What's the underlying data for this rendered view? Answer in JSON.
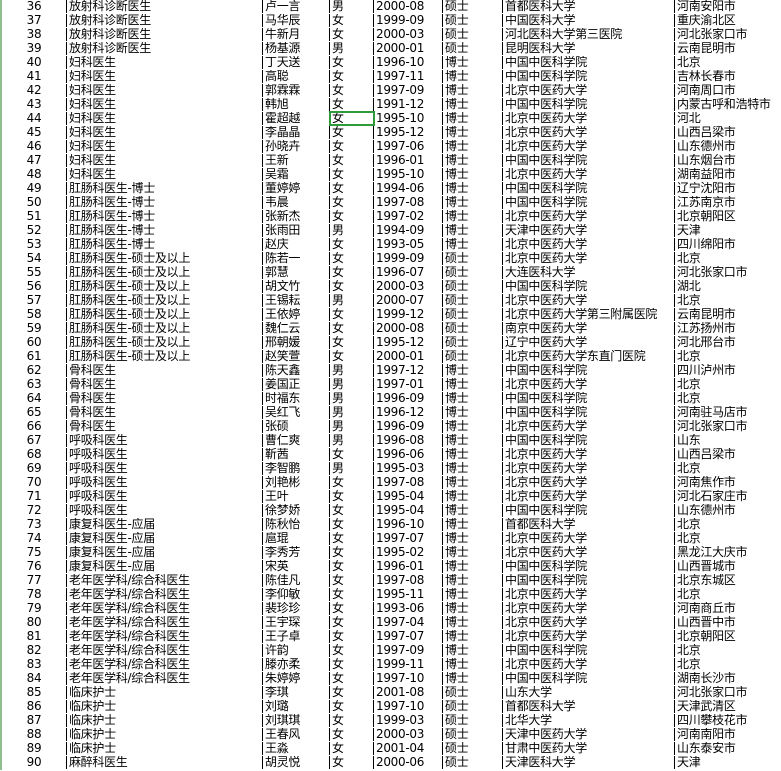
{
  "selection": {
    "row": 44,
    "column": "gender",
    "color": "#2e9a3a"
  },
  "rows": [
    [
      "36",
      "放射科诊断医生",
      "卢一言",
      "男",
      "2000-08",
      "硕士",
      "首都医科大学",
      "河南安阳市"
    ],
    [
      "37",
      "放射科诊断医生",
      "马华辰",
      "女",
      "1999-09",
      "硕士",
      "中国医科大学",
      "重庆渝北区"
    ],
    [
      "38",
      "放射科诊断医生",
      "牛新月",
      "女",
      "2000-03",
      "硕士",
      "河北医科大学第三医院",
      "河北张家口市"
    ],
    [
      "39",
      "放射科诊断医生",
      "杨基源",
      "男",
      "2000-01",
      "硕士",
      "昆明医科大学",
      "云南昆明市"
    ],
    [
      "40",
      "妇科医生",
      "丁天送",
      "女",
      "1996-10",
      "博士",
      "中国中医科学院",
      "北京"
    ],
    [
      "41",
      "妇科医生",
      "高聪",
      "女",
      "1997-11",
      "博士",
      "中国中医科学院",
      "吉林长春市"
    ],
    [
      "42",
      "妇科医生",
      "郭霖霖",
      "女",
      "1997-09",
      "博士",
      "北京中医药大学",
      "河南周口市"
    ],
    [
      "43",
      "妇科医生",
      "韩旭",
      "女",
      "1991-12",
      "博士",
      "中国中医科学院",
      "内蒙古呼和浩特市"
    ],
    [
      "44",
      "妇科医生",
      "霍超越",
      "女",
      "1995-10",
      "博士",
      "北京中医药大学",
      "河北"
    ],
    [
      "45",
      "妇科医生",
      "李晶晶",
      "女",
      "1995-12",
      "博士",
      "北京中医药大学",
      "山西吕梁市"
    ],
    [
      "46",
      "妇科医生",
      "孙晓卉",
      "女",
      "1997-06",
      "博士",
      "北京中医药大学",
      "山东德州市"
    ],
    [
      "47",
      "妇科医生",
      "王新",
      "女",
      "1996-01",
      "博士",
      "中国中医科学院",
      "山东烟台市"
    ],
    [
      "48",
      "妇科医生",
      "吴霜",
      "女",
      "1995-10",
      "博士",
      "北京中医药大学",
      "湖南益阳市"
    ],
    [
      "49",
      "肛肠科医生-博士",
      "董婷婷",
      "女",
      "1994-06",
      "博士",
      "中国中医科学院",
      "辽宁沈阳市"
    ],
    [
      "50",
      "肛肠科医生-博士",
      "韦晨",
      "女",
      "1997-08",
      "博士",
      "中国中医科学院",
      "江苏南京市"
    ],
    [
      "51",
      "肛肠科医生-博士",
      "张新杰",
      "女",
      "1997-02",
      "博士",
      "北京中医药大学",
      "北京朝阳区"
    ],
    [
      "52",
      "肛肠科医生-博士",
      "张雨田",
      "男",
      "1994-09",
      "博士",
      "天津中医药大学",
      "天津"
    ],
    [
      "53",
      "肛肠科医生-博士",
      "赵庆",
      "女",
      "1993-05",
      "博士",
      "北京中医药大学",
      "四川绵阳市"
    ],
    [
      "54",
      "肛肠科医生-硕士及以上",
      "陈若一",
      "女",
      "1999-09",
      "硕士",
      "北京中医药大学",
      "北京"
    ],
    [
      "55",
      "肛肠科医生-硕士及以上",
      "郭慧",
      "女",
      "1996-07",
      "硕士",
      "大连医科大学",
      "河北张家口市"
    ],
    [
      "56",
      "肛肠科医生-硕士及以上",
      "胡文竹",
      "女",
      "2000-03",
      "硕士",
      "中国中医科学院",
      "湖北"
    ],
    [
      "57",
      "肛肠科医生-硕士及以上",
      "王锡耘",
      "男",
      "2000-07",
      "硕士",
      "北京中医药大学",
      "北京"
    ],
    [
      "58",
      "肛肠科医生-硕士及以上",
      "王依婷",
      "女",
      "1999-12",
      "硕士",
      "北京中医药大学第三附属医院",
      "云南昆明市"
    ],
    [
      "59",
      "肛肠科医生-硕士及以上",
      "魏仁云",
      "女",
      "2000-08",
      "硕士",
      "南京中医药大学",
      "江苏扬州市"
    ],
    [
      "60",
      "肛肠科医生-硕士及以上",
      "邢朝媛",
      "女",
      "1995-12",
      "硕士",
      "辽宁中医药大学",
      "河北邢台市"
    ],
    [
      "61",
      "肛肠科医生-硕士及以上",
      "赵笑萱",
      "女",
      "2000-01",
      "硕士",
      "北京中医药大学东直门医院",
      "北京"
    ],
    [
      "62",
      "骨科医生",
      "陈天鑫",
      "男",
      "1997-12",
      "博士",
      "中国中医科学院",
      "四川泸州市"
    ],
    [
      "63",
      "骨科医生",
      "姜国正",
      "男",
      "1997-01",
      "博士",
      "北京中医药大学",
      "北京"
    ],
    [
      "64",
      "骨科医生",
      "时福东",
      "男",
      "1996-09",
      "博士",
      "中国中医科学院",
      "北京"
    ],
    [
      "65",
      "骨科医生",
      "吴红飞",
      "男",
      "1996-12",
      "博士",
      "中国中医科学院",
      "河南驻马店市"
    ],
    [
      "66",
      "骨科医生",
      "张硕",
      "男",
      "1996-09",
      "博士",
      "北京中医药大学",
      "河北张家口市"
    ],
    [
      "67",
      "呼吸科医生",
      "曹仁爽",
      "男",
      "1996-08",
      "博士",
      "中国中医科学院",
      "山东"
    ],
    [
      "68",
      "呼吸科医生",
      "靳茜",
      "女",
      "1996-06",
      "博士",
      "北京中医药大学",
      "山西吕梁市"
    ],
    [
      "69",
      "呼吸科医生",
      "李智鹏",
      "男",
      "1995-03",
      "博士",
      "北京中医药大学",
      "北京"
    ],
    [
      "70",
      "呼吸科医生",
      "刘艳彬",
      "女",
      "1997-08",
      "博士",
      "北京中医药大学",
      "河南焦作市"
    ],
    [
      "71",
      "呼吸科医生",
      "王叶",
      "女",
      "1995-04",
      "博士",
      "北京中医药大学",
      "河北石家庄市"
    ],
    [
      "72",
      "呼吸科医生",
      "徐梦娇",
      "女",
      "1995-04",
      "博士",
      "中国中医科学院",
      "山东德州市"
    ],
    [
      "73",
      "康复科医生-应届",
      "陈秋怡",
      "女",
      "1996-10",
      "博士",
      "首都医科大学",
      "北京"
    ],
    [
      "74",
      "康复科医生-应届",
      "扈琨",
      "女",
      "1997-07",
      "博士",
      "北京中医药大学",
      "北京"
    ],
    [
      "75",
      "康复科医生-应届",
      "李秀芳",
      "女",
      "1995-02",
      "博士",
      "北京中医药大学",
      "黑龙江大庆市"
    ],
    [
      "76",
      "康复科医生-应届",
      "宋英",
      "女",
      "1996-01",
      "博士",
      "中国中医科学院",
      "山西晋城市"
    ],
    [
      "77",
      "老年医学科/综合科医生",
      "陈佳凡",
      "女",
      "1997-08",
      "博士",
      "中国中医科学院",
      "北京东城区"
    ],
    [
      "78",
      "老年医学科/综合科医生",
      "李仰敏",
      "女",
      "1995-11",
      "博士",
      "北京中医药大学",
      "北京"
    ],
    [
      "79",
      "老年医学科/综合科医生",
      "裴珍珍",
      "女",
      "1993-06",
      "博士",
      "北京中医药大学",
      "河南商丘市"
    ],
    [
      "80",
      "老年医学科/综合科医生",
      "王宇琛",
      "女",
      "1997-04",
      "博士",
      "北京中医药大学",
      "山西晋中市"
    ],
    [
      "81",
      "老年医学科/综合科医生",
      "王子卓",
      "女",
      "1997-07",
      "博士",
      "北京中医药大学",
      "北京朝阳区"
    ],
    [
      "82",
      "老年医学科/综合科医生",
      "许韵",
      "女",
      "1997-09",
      "博士",
      "中国中医科学院",
      "北京"
    ],
    [
      "83",
      "老年医学科/综合科医生",
      "滕亦柔",
      "女",
      "1999-11",
      "博士",
      "北京中医药大学",
      "北京"
    ],
    [
      "84",
      "老年医学科/综合科医生",
      "朱婷婷",
      "女",
      "1997-10",
      "博士",
      "中国中医科学院",
      "湖南长沙市"
    ],
    [
      "85",
      "临床护士",
      "李琪",
      "女",
      "2001-08",
      "硕士",
      "山东大学",
      "河北张家口市"
    ],
    [
      "86",
      "临床护士",
      "刘璐",
      "女",
      "1997-10",
      "硕士",
      "首都医科大学",
      "天津武清区"
    ],
    [
      "87",
      "临床护士",
      "刘琪琪",
      "女",
      "1999-03",
      "硕士",
      "北华大学",
      "四川攀枝花市"
    ],
    [
      "88",
      "临床护士",
      "王春风",
      "女",
      "2000-03",
      "硕士",
      "天津中医药大学",
      "河南南阳市"
    ],
    [
      "89",
      "临床护士",
      "王淼",
      "女",
      "2001-04",
      "硕士",
      "甘肃中医药大学",
      "山东泰安市"
    ],
    [
      "90",
      "麻醉科医生",
      "胡灵悦",
      "女",
      "2000-06",
      "硕士",
      "天津医科大学",
      "天津"
    ]
  ]
}
